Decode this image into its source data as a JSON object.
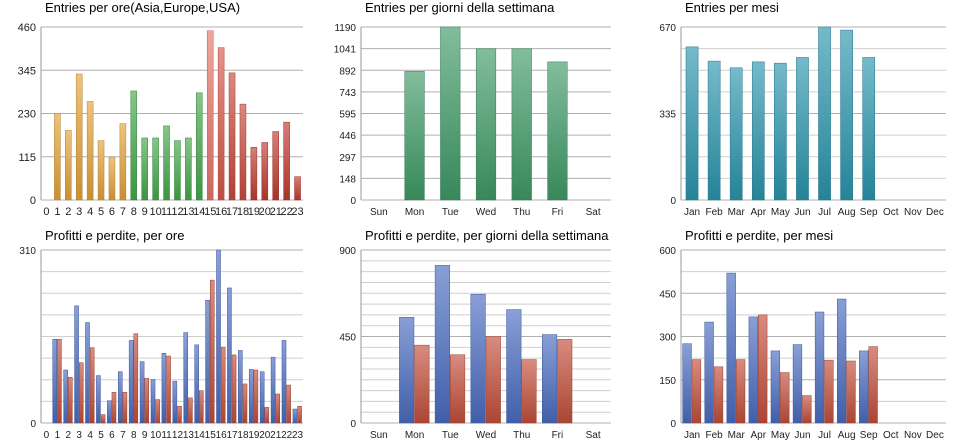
{
  "chart_data": [
    {
      "type": "bar",
      "title": "Entries per ore(Asia,Europe,USA)",
      "categories": [
        "0",
        "1",
        "2",
        "3",
        "4",
        "5",
        "6",
        "7",
        "8",
        "9",
        "10",
        "11",
        "12",
        "13",
        "14",
        "15",
        "16",
        "17",
        "18",
        "19",
        "20",
        "21",
        "22",
        "23"
      ],
      "ylim": [
        0,
        460
      ],
      "yticks": [
        "0",
        "115",
        "230",
        "345",
        "460"
      ],
      "grid": true,
      "series": [
        {
          "values": [
            0,
            230,
            185,
            335,
            262,
            158,
            113,
            203,
            290,
            165,
            165,
            197,
            158,
            165,
            285,
            450,
            405,
            338,
            255,
            140,
            153,
            182,
            207,
            62
          ],
          "colors": [
            "#e3a33a",
            "#e3a33a",
            "#e3a33a",
            "#e3a33a",
            "#e3a33a",
            "#e3a33a",
            "#e3a33a",
            "#e3a33a",
            "#44a84a",
            "#44a84a",
            "#44a84a",
            "#44a84a",
            "#44a84a",
            "#44a84a",
            "#44a84a",
            "#e8766a",
            "#d8584a",
            "#c84a3c",
            "#c84a3c",
            "#c03a30",
            "#c03a30",
            "#c03a30",
            "#c03a30",
            "#c03a30"
          ]
        }
      ]
    },
    {
      "type": "bar",
      "title": "Entries per giorni della settimana",
      "categories": [
        "Sun",
        "Mon",
        "Tue",
        "Wed",
        "Thu",
        "Fri",
        "Sat"
      ],
      "ylim": [
        0,
        1190
      ],
      "yticks": [
        "0",
        "148",
        "297",
        "446",
        "595",
        "743",
        "892",
        "1041",
        "1190"
      ],
      "grid": true,
      "series": [
        {
          "values": [
            0,
            885,
            1190,
            1040,
            1040,
            950,
            0
          ],
          "color": "#3e9a66"
        }
      ]
    },
    {
      "type": "bar",
      "title": "Entries per mesi",
      "categories": [
        "Jan",
        "Feb",
        "Mar",
        "Apr",
        "May",
        "Jun",
        "Jul",
        "Aug",
        "Sep",
        "Oct",
        "Nov",
        "Dec"
      ],
      "ylim": [
        0,
        670
      ],
      "yticks": [
        "0",
        "335",
        "670"
      ],
      "grid": true,
      "series": [
        {
          "values": [
            593,
            538,
            512,
            535,
            530,
            552,
            670,
            658,
            552,
            0,
            0,
            0
          ],
          "color": "#2a95ad"
        }
      ]
    },
    {
      "type": "bar",
      "title": "Profitti e perdite, per ore",
      "categories": [
        "0",
        "1",
        "2",
        "3",
        "4",
        "5",
        "6",
        "7",
        "8",
        "9",
        "10",
        "11",
        "12",
        "13",
        "14",
        "15",
        "16",
        "17",
        "18",
        "19",
        "20",
        "21",
        "22",
        "23"
      ],
      "ylim": [
        0,
        310
      ],
      "yticks": [
        "0",
        "310"
      ],
      "grid": true,
      "series": [
        {
          "name": "",
          "values": [
            0,
            150,
            95,
            210,
            180,
            85,
            40,
            92,
            148,
            110,
            78,
            125,
            75,
            162,
            140,
            220,
            310,
            242,
            130,
            96,
            92,
            118,
            148,
            25
          ],
          "color": "#4a6cc0"
        },
        {
          "name": "",
          "values": [
            0,
            150,
            82,
            108,
            135,
            15,
            55,
            55,
            160,
            80,
            42,
            120,
            30,
            45,
            58,
            256,
            136,
            122,
            70,
            95,
            28,
            52,
            68,
            30
          ],
          "color": "#c24e3a"
        }
      ]
    },
    {
      "type": "bar",
      "title": "Profitti e perdite, per giorni della settimana",
      "categories": [
        "Sun",
        "Mon",
        "Tue",
        "Wed",
        "Thu",
        "Fri",
        "Sat"
      ],
      "ylim": [
        0,
        900
      ],
      "yticks": [
        "0",
        "450",
        "900"
      ],
      "grid": true,
      "series": [
        {
          "name": "",
          "values": [
            0,
            550,
            820,
            670,
            590,
            460,
            0
          ],
          "color": "#4a6cc0"
        },
        {
          "name": "",
          "values": [
            0,
            405,
            355,
            450,
            330,
            435,
            0
          ],
          "color": "#c24e3a"
        }
      ]
    },
    {
      "type": "bar",
      "title": "Profitti e perdite, per mesi",
      "categories": [
        "Jan",
        "Feb",
        "Mar",
        "Apr",
        "May",
        "Jun",
        "Jul",
        "Aug",
        "Sep",
        "Oct",
        "Nov",
        "Dec"
      ],
      "ylim": [
        0,
        600
      ],
      "yticks": [
        "0",
        "150",
        "300",
        "450",
        "600"
      ],
      "grid": true,
      "series": [
        {
          "name": "",
          "values": [
            275,
            350,
            520,
            368,
            250,
            272,
            385,
            430,
            250,
            0,
            0,
            0
          ],
          "color": "#4a6cc0"
        },
        {
          "name": "",
          "values": [
            220,
            195,
            220,
            375,
            175,
            95,
            218,
            215,
            265,
            0,
            0,
            0
          ],
          "color": "#c24e3a"
        }
      ]
    }
  ]
}
